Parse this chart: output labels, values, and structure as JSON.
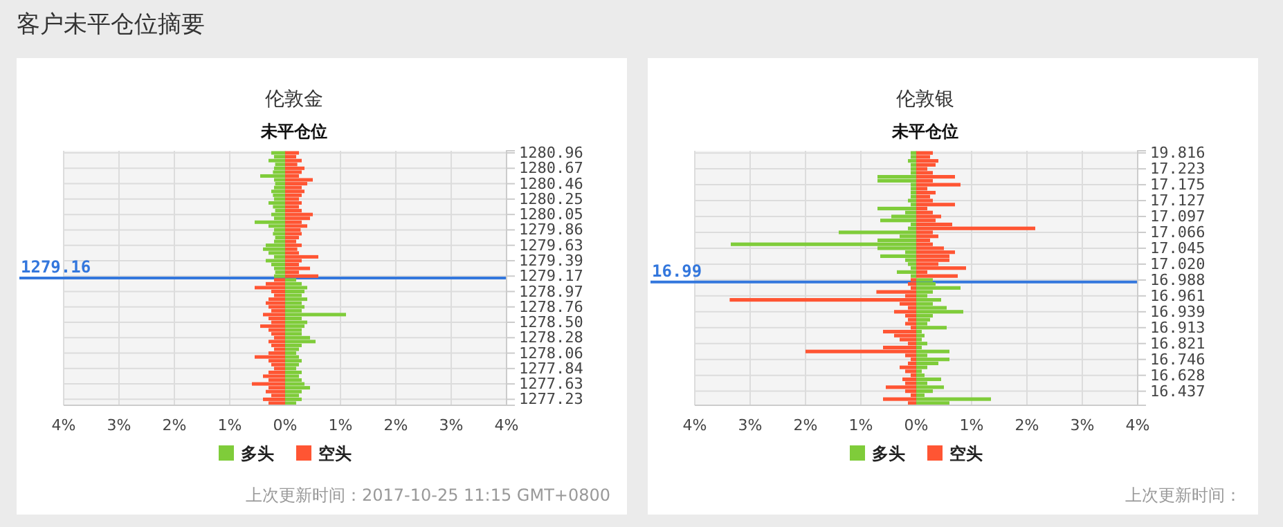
{
  "chart_data": [
    {
      "type": "bar",
      "title": "伦敦金",
      "subtitle": "未平仓位",
      "orientation": "horizontal",
      "stacked": true,
      "grid": true,
      "legend": "bottom",
      "annotations": [
        "客户未平仓位摘要",
        "上次更新时间：2017-10-25 11:15 GMT+0800"
      ],
      "ref_lines": [
        {
          "axis": "y",
          "value": "1279.17",
          "label": "1279.16",
          "color": "#3377dd"
        }
      ],
      "categories": [
        "1280.96",
        null,
        null,
        null,
        "1280.67",
        null,
        null,
        null,
        "1280.46",
        null,
        null,
        null,
        "1280.25",
        null,
        null,
        null,
        "1280.05",
        null,
        null,
        null,
        "1279.86",
        null,
        null,
        null,
        "1279.63",
        null,
        null,
        null,
        "1279.39",
        null,
        null,
        null,
        "1279.17",
        null,
        null,
        null,
        "1278.97",
        null,
        null,
        null,
        "1278.76",
        null,
        null,
        null,
        "1278.50",
        null,
        null,
        null,
        "1278.28",
        null,
        null,
        null,
        "1278.06",
        null,
        null,
        null,
        "1277.84",
        null,
        null,
        null,
        "1277.63",
        null,
        null,
        null,
        "1277.23",
        null
      ],
      "xlim": [
        -4,
        4
      ],
      "xticks": [
        {
          "value": -4,
          "label": "4%"
        },
        {
          "value": -3,
          "label": "3%"
        },
        {
          "value": -2,
          "label": "2%"
        },
        {
          "value": -1,
          "label": "1%"
        },
        {
          "value": 0,
          "label": "0%"
        },
        {
          "value": 1,
          "label": "1%"
        },
        {
          "value": 2,
          "label": "2%"
        },
        {
          "value": 3,
          "label": "3%"
        },
        {
          "value": 4,
          "label": "4%"
        }
      ],
      "series": [
        {
          "name": "多头",
          "color": "#7fcc3a",
          "values": [
            -0.25,
            -0.2,
            -0.3,
            -0.18,
            -0.2,
            -0.22,
            -0.45,
            -0.2,
            -0.18,
            -0.2,
            -0.25,
            -0.22,
            -0.2,
            -0.3,
            -0.22,
            -0.18,
            -0.25,
            -0.2,
            -0.55,
            -0.3,
            -0.2,
            -0.22,
            -0.18,
            -0.2,
            -0.35,
            -0.4,
            -0.3,
            -0.2,
            -0.35,
            -0.25,
            -0.2,
            -0.18,
            -0.2,
            0.2,
            0.3,
            0.4,
            0.35,
            0.3,
            0.4,
            0.3,
            0.35,
            0.3,
            1.1,
            0.3,
            0.4,
            0.35,
            0.3,
            0.3,
            0.45,
            0.55,
            0.3,
            0.25,
            0.2,
            0.25,
            0.3,
            0.25,
            0.2,
            0.3,
            0.25,
            0.3,
            0.35,
            0.45,
            0.3,
            0.25,
            0.3,
            0.2
          ]
        },
        {
          "name": "空头",
          "color": "#ff5533",
          "values": [
            0.25,
            0.2,
            0.3,
            0.22,
            0.35,
            0.3,
            0.25,
            0.5,
            0.4,
            0.3,
            0.35,
            0.3,
            0.25,
            0.3,
            0.25,
            0.3,
            0.5,
            0.45,
            0.3,
            0.4,
            0.28,
            0.3,
            0.25,
            0.2,
            0.3,
            0.22,
            0.25,
            0.6,
            0.3,
            0.25,
            0.45,
            0.25,
            0.6,
            -0.2,
            -0.35,
            -0.55,
            -0.25,
            -0.2,
            -0.3,
            -0.35,
            -0.3,
            -0.25,
            -0.4,
            -0.3,
            -0.25,
            -0.45,
            -0.3,
            -0.25,
            -0.2,
            -0.3,
            -0.25,
            -0.2,
            -0.3,
            -0.55,
            -0.3,
            -0.25,
            -0.2,
            -0.3,
            -0.4,
            -0.3,
            -0.6,
            -0.3,
            -0.35,
            -0.25,
            -0.4,
            -0.3
          ]
        }
      ]
    },
    {
      "type": "bar",
      "title": "伦敦银",
      "subtitle": "未平仓位",
      "orientation": "horizontal",
      "stacked": true,
      "grid": true,
      "legend": "bottom",
      "annotations": [
        "上次更新时间："
      ],
      "ref_lines": [
        {
          "axis": "y",
          "value": "16.988",
          "label": "16.99",
          "color": "#3377dd"
        }
      ],
      "categories": [
        "19.816",
        null,
        null,
        null,
        "17.223",
        null,
        null,
        null,
        "17.175",
        null,
        null,
        null,
        "17.127",
        null,
        null,
        null,
        "17.097",
        null,
        null,
        null,
        "17.066",
        null,
        null,
        null,
        "17.045",
        null,
        null,
        null,
        "17.020",
        null,
        null,
        null,
        "16.988",
        null,
        null,
        null,
        "16.961",
        null,
        null,
        null,
        "16.939",
        null,
        null,
        null,
        "16.913",
        null,
        null,
        null,
        "16.821",
        null,
        null,
        null,
        "16.746",
        null,
        null,
        null,
        "16.628",
        null,
        null,
        null,
        "16.437",
        null,
        null,
        null
      ],
      "xlim": [
        -4,
        4
      ],
      "xticks": [
        {
          "value": -4,
          "label": "4%"
        },
        {
          "value": -3,
          "label": "3%"
        },
        {
          "value": -2,
          "label": "2%"
        },
        {
          "value": -1,
          "label": "1%"
        },
        {
          "value": 0,
          "label": "0%"
        },
        {
          "value": 1,
          "label": "1%"
        },
        {
          "value": 2,
          "label": "2%"
        },
        {
          "value": 3,
          "label": "3%"
        },
        {
          "value": 4,
          "label": "4%"
        }
      ],
      "series": [
        {
          "name": "多头",
          "color": "#7fcc3a",
          "values": [
            -0.1,
            -0.1,
            -0.15,
            -0.1,
            -0.1,
            -0.1,
            -0.7,
            -0.7,
            -0.1,
            -0.1,
            -0.1,
            -0.1,
            -0.15,
            -0.1,
            -0.7,
            -0.2,
            -0.45,
            -0.65,
            -0.1,
            -0.15,
            -1.4,
            -0.3,
            -0.7,
            -3.35,
            -0.7,
            -0.2,
            -0.65,
            -0.2,
            -0.15,
            -0.1,
            -0.35,
            -0.1,
            0.3,
            0.35,
            0.8,
            0.3,
            0.2,
            0.45,
            0.3,
            0.55,
            0.85,
            0.3,
            0.25,
            0.2,
            0.55,
            0.1,
            0.15,
            0.1,
            0.2,
            0.1,
            0.6,
            0.2,
            0.6,
            0.4,
            0.2,
            0.1,
            0.15,
            0.45,
            0.2,
            0.5,
            0.3,
            0.15,
            1.35,
            0.6
          ]
        },
        {
          "name": "空头",
          "color": "#ff5533",
          "values": [
            0.3,
            0.25,
            0.4,
            0.35,
            0.2,
            0.3,
            0.7,
            0.3,
            0.8,
            0.2,
            0.35,
            0.25,
            0.3,
            0.7,
            0.2,
            0.3,
            0.45,
            0.35,
            0.65,
            2.15,
            0.3,
            0.4,
            0.25,
            0.3,
            0.5,
            0.7,
            0.6,
            0.6,
            0.4,
            0.9,
            0.2,
            0.75,
            -0.1,
            -0.15,
            -0.1,
            -0.72,
            -0.2,
            -3.37,
            -0.3,
            -0.15,
            -0.4,
            -0.2,
            -0.15,
            -0.2,
            -0.1,
            -0.6,
            -0.4,
            -0.3,
            -0.15,
            -0.6,
            -2.0,
            -0.2,
            -0.1,
            -0.15,
            -0.3,
            -0.2,
            -0.1,
            -0.25,
            -0.2,
            -0.55,
            -0.2,
            -0.1,
            -0.6,
            -0.15
          ]
        }
      ]
    }
  ]
}
